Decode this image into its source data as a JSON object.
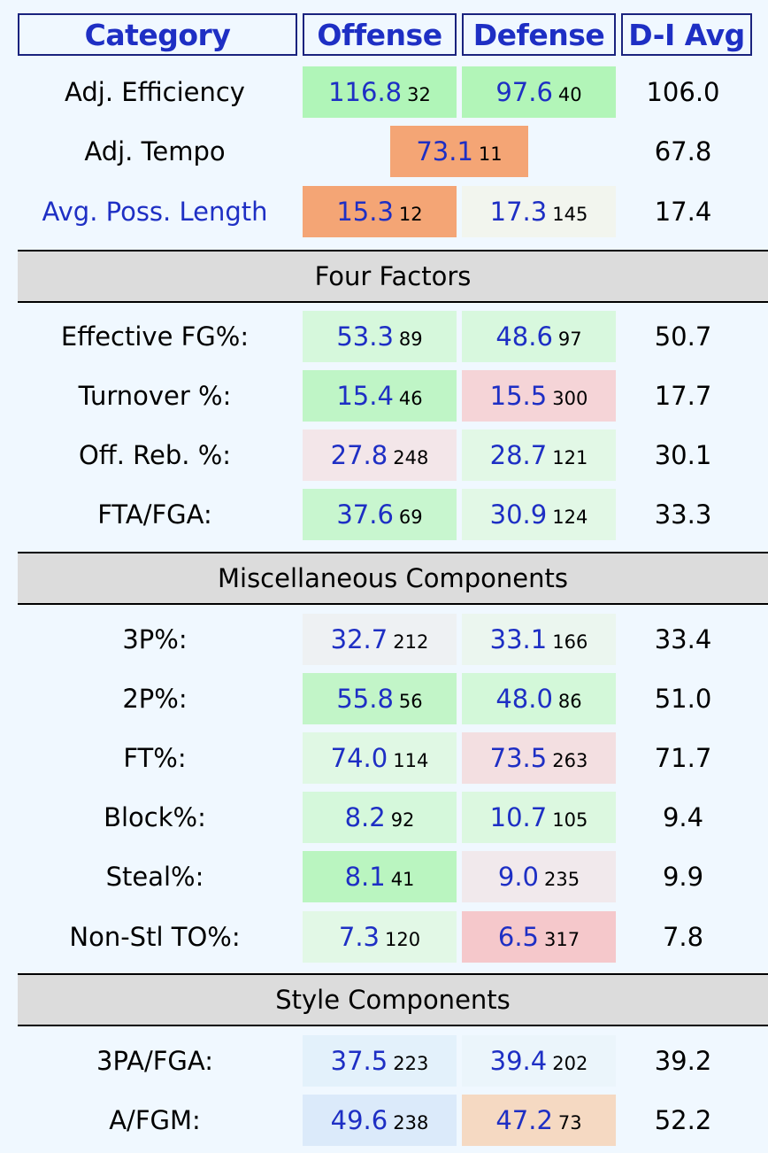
{
  "header": {
    "category": "Category",
    "offense": "Offense",
    "defense": "Defense",
    "avg": "D-I Avg"
  },
  "top": {
    "adj_eff": {
      "label": "Adj. Efficiency",
      "off_val": "116.8",
      "off_rank": "32",
      "def_val": "97.6",
      "def_rank": "40",
      "avg": "106.0"
    },
    "adj_tempo": {
      "label": "Adj. Tempo",
      "val": "73.1",
      "rank": "11",
      "avg": "67.8"
    },
    "poss_len": {
      "label": "Avg. Poss. Length",
      "off_val": "15.3",
      "off_rank": "12",
      "def_val": "17.3",
      "def_rank": "145",
      "avg": "17.4"
    }
  },
  "sections": {
    "four_factors": "Four Factors",
    "misc": "Miscellaneous Components",
    "style": "Style Components"
  },
  "four_factors": [
    {
      "label": "Effective FG%:",
      "off_val": "53.3",
      "off_rank": "89",
      "def_val": "48.6",
      "def_rank": "97",
      "avg": "50.7"
    },
    {
      "label": "Turnover %:",
      "off_val": "15.4",
      "off_rank": "46",
      "def_val": "15.5",
      "def_rank": "300",
      "avg": "17.7"
    },
    {
      "label": "Off. Reb. %:",
      "off_val": "27.8",
      "off_rank": "248",
      "def_val": "28.7",
      "def_rank": "121",
      "avg": "30.1"
    },
    {
      "label": "FTA/FGA:",
      "off_val": "37.6",
      "off_rank": "69",
      "def_val": "30.9",
      "def_rank": "124",
      "avg": "33.3"
    }
  ],
  "misc": [
    {
      "label": "3P%:",
      "off_val": "32.7",
      "off_rank": "212",
      "def_val": "33.1",
      "def_rank": "166",
      "avg": "33.4"
    },
    {
      "label": "2P%:",
      "off_val": "55.8",
      "off_rank": "56",
      "def_val": "48.0",
      "def_rank": "86",
      "avg": "51.0"
    },
    {
      "label": "FT%:",
      "off_val": "74.0",
      "off_rank": "114",
      "def_val": "73.5",
      "def_rank": "263",
      "avg": "71.7"
    },
    {
      "label": "Block%:",
      "off_val": "8.2",
      "off_rank": "92",
      "def_val": "10.7",
      "def_rank": "105",
      "avg": "9.4"
    },
    {
      "label": "Steal%:",
      "off_val": "8.1",
      "off_rank": "41",
      "def_val": "9.0",
      "def_rank": "235",
      "avg": "9.9"
    },
    {
      "label": "Non-Stl TO%:",
      "off_val": "7.3",
      "off_rank": "120",
      "def_val": "6.5",
      "def_rank": "317",
      "avg": "7.8"
    }
  ],
  "style": [
    {
      "label": "3PA/FGA:",
      "off_val": "37.5",
      "off_rank": "223",
      "def_val": "39.4",
      "def_rank": "202",
      "avg": "39.2"
    },
    {
      "label": "A/FGM:",
      "off_val": "49.6",
      "off_rank": "238",
      "def_val": "47.2",
      "def_rank": "73",
      "avg": "52.2"
    }
  ],
  "colors": {
    "accent_text": "#1e2fc4",
    "header_border": "#1a237e",
    "section_bg": "#dcdcdc",
    "page_bg": "#f0f8ff"
  }
}
